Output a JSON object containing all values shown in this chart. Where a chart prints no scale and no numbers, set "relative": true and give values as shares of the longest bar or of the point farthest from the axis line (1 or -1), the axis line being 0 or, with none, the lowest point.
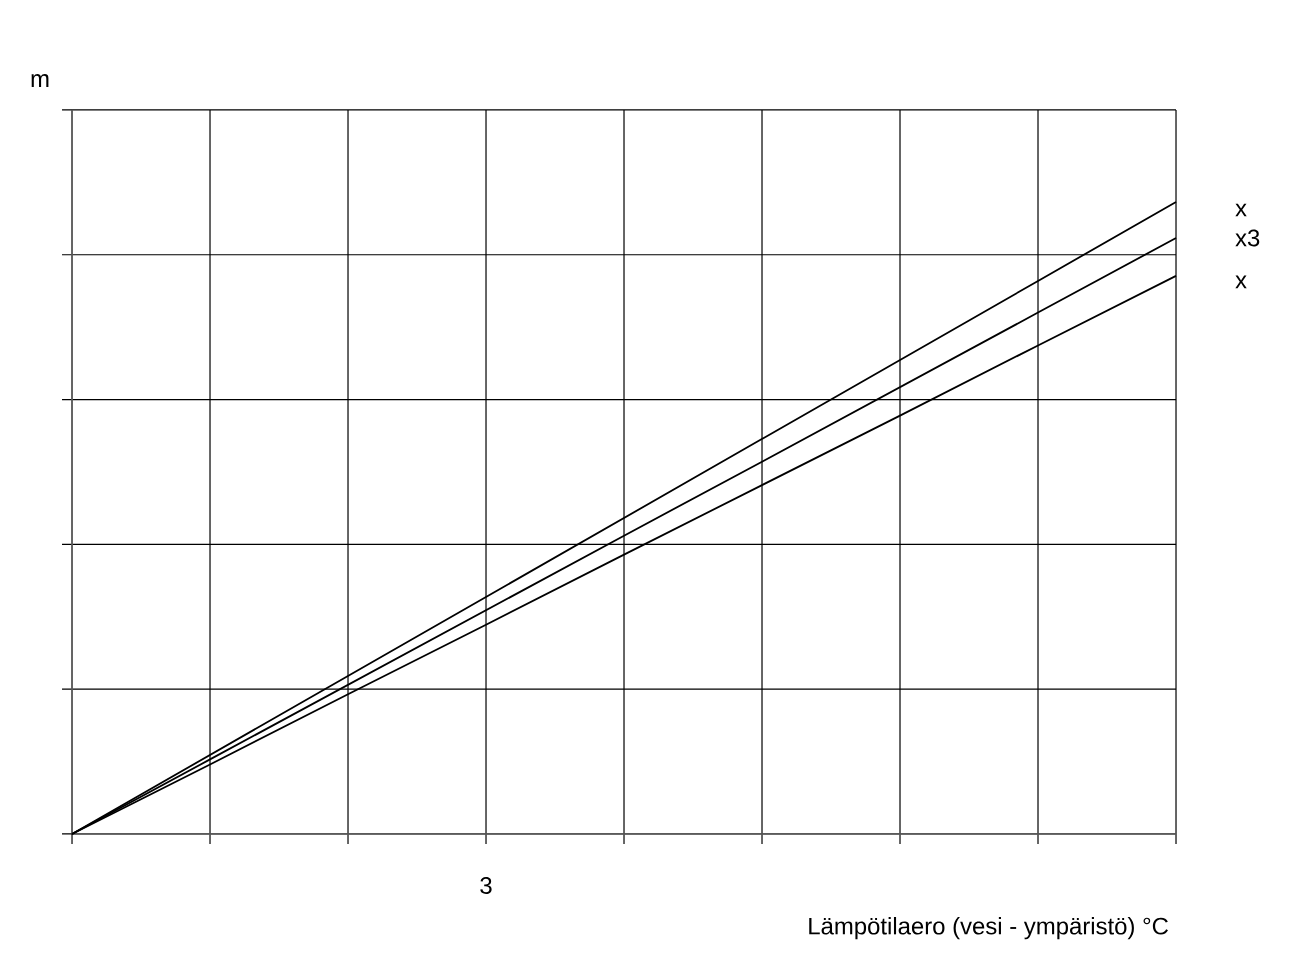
{
  "chart_data": {
    "type": "line",
    "relative": true,
    "xlabel": "Lämpötilaero (vesi - ympäristö) °C",
    "ylabel": "m",
    "grid": true,
    "categories": [
      null,
      null,
      null,
      null,
      null,
      null,
      null,
      null,
      null
    ],
    "annotations": [
      "3"
    ],
    "series": [
      {
        "name": "x",
        "color": "#000000",
        "values": [
          0,
          0.125,
          0.25,
          0.375,
          0.5,
          0.625,
          0.75,
          0.875,
          1
        ]
      },
      {
        "name": "x3",
        "color": "#000000",
        "values": [
          0,
          0.118,
          0.236,
          0.354,
          0.472,
          0.589,
          0.707,
          0.825,
          0.943
        ]
      },
      {
        "name": "x",
        "color": "#000000",
        "values": [
          0,
          0.11,
          0.221,
          0.331,
          0.442,
          0.552,
          0.662,
          0.773,
          0.883
        ]
      }
    ]
  }
}
